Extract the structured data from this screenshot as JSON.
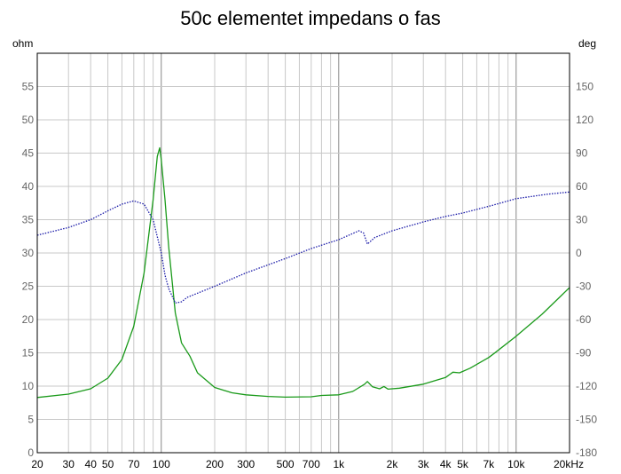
{
  "chart_data": {
    "type": "line",
    "title": "50c elementet impedans o fas",
    "y_left_unit": "ohm",
    "y_right_unit": "deg",
    "x_scale": "log",
    "xlim": [
      20,
      20000
    ],
    "ylim_left": [
      0,
      60
    ],
    "ylim_right": [
      -180,
      180
    ],
    "grid": true,
    "x_tick_labels": [
      {
        "v": 20,
        "t": "20"
      },
      {
        "v": 30,
        "t": "30"
      },
      {
        "v": 40,
        "t": "40"
      },
      {
        "v": 50,
        "t": "50"
      },
      {
        "v": 70,
        "t": "70"
      },
      {
        "v": 100,
        "t": "100"
      },
      {
        "v": 200,
        "t": "200"
      },
      {
        "v": 300,
        "t": "300"
      },
      {
        "v": 500,
        "t": "500"
      },
      {
        "v": 700,
        "t": "700"
      },
      {
        "v": 1000,
        "t": "1k"
      },
      {
        "v": 2000,
        "t": "2k"
      },
      {
        "v": 3000,
        "t": "3k"
      },
      {
        "v": 4000,
        "t": "4k"
      },
      {
        "v": 5000,
        "t": "5k"
      },
      {
        "v": 7000,
        "t": "7k"
      },
      {
        "v": 10000,
        "t": "10k"
      },
      {
        "v": 20000,
        "t": "20kHz"
      }
    ],
    "y_left_ticks": [
      0,
      5,
      10,
      15,
      20,
      25,
      30,
      35,
      40,
      45,
      50,
      55
    ],
    "y_right_ticks": [
      -180,
      -150,
      -120,
      -90,
      -60,
      -30,
      0,
      30,
      60,
      90,
      120,
      150
    ],
    "series": [
      {
        "axis": "left",
        "color": "#1a9a1a",
        "style": "solid",
        "points": [
          [
            20,
            8.3
          ],
          [
            30,
            8.8
          ],
          [
            40,
            9.6
          ],
          [
            50,
            11.2
          ],
          [
            60,
            14.0
          ],
          [
            70,
            19.0
          ],
          [
            80,
            27.0
          ],
          [
            90,
            38.0
          ],
          [
            95,
            44.5
          ],
          [
            98,
            45.8
          ],
          [
            100,
            44.0
          ],
          [
            105,
            38.0
          ],
          [
            110,
            31.0
          ],
          [
            120,
            21.0
          ],
          [
            130,
            16.5
          ],
          [
            145,
            14.5
          ],
          [
            160,
            12.0
          ],
          [
            200,
            9.8
          ],
          [
            250,
            9.0
          ],
          [
            300,
            8.7
          ],
          [
            400,
            8.45
          ],
          [
            500,
            8.35
          ],
          [
            700,
            8.4
          ],
          [
            800,
            8.6
          ],
          [
            1000,
            8.7
          ],
          [
            1200,
            9.2
          ],
          [
            1400,
            10.3
          ],
          [
            1450,
            10.7
          ],
          [
            1550,
            9.9
          ],
          [
            1700,
            9.6
          ],
          [
            1800,
            9.95
          ],
          [
            1900,
            9.55
          ],
          [
            2200,
            9.7
          ],
          [
            3000,
            10.3
          ],
          [
            4000,
            11.3
          ],
          [
            4400,
            12.1
          ],
          [
            4800,
            12.0
          ],
          [
            5500,
            12.7
          ],
          [
            7000,
            14.3
          ],
          [
            7500,
            14.9
          ],
          [
            10000,
            17.5
          ],
          [
            14000,
            20.8
          ],
          [
            20000,
            24.8
          ]
        ]
      },
      {
        "axis": "right",
        "color": "#1a1aa8",
        "style": "dotted",
        "points": [
          [
            20,
            16
          ],
          [
            30,
            23
          ],
          [
            40,
            30
          ],
          [
            50,
            38
          ],
          [
            60,
            44
          ],
          [
            70,
            47
          ],
          [
            80,
            44
          ],
          [
            90,
            30
          ],
          [
            100,
            0
          ],
          [
            105,
            -20
          ],
          [
            110,
            -32
          ],
          [
            120,
            -45
          ],
          [
            130,
            -44
          ],
          [
            140,
            -40
          ],
          [
            200,
            -30
          ],
          [
            300,
            -18
          ],
          [
            500,
            -5
          ],
          [
            700,
            4
          ],
          [
            1000,
            12
          ],
          [
            1300,
            20
          ],
          [
            1380,
            18
          ],
          [
            1450,
            8
          ],
          [
            1600,
            14
          ],
          [
            2000,
            20
          ],
          [
            3000,
            28
          ],
          [
            4000,
            33
          ],
          [
            5000,
            36
          ],
          [
            7000,
            42
          ],
          [
            10000,
            49
          ],
          [
            15000,
            53
          ],
          [
            20000,
            55
          ]
        ]
      }
    ]
  }
}
